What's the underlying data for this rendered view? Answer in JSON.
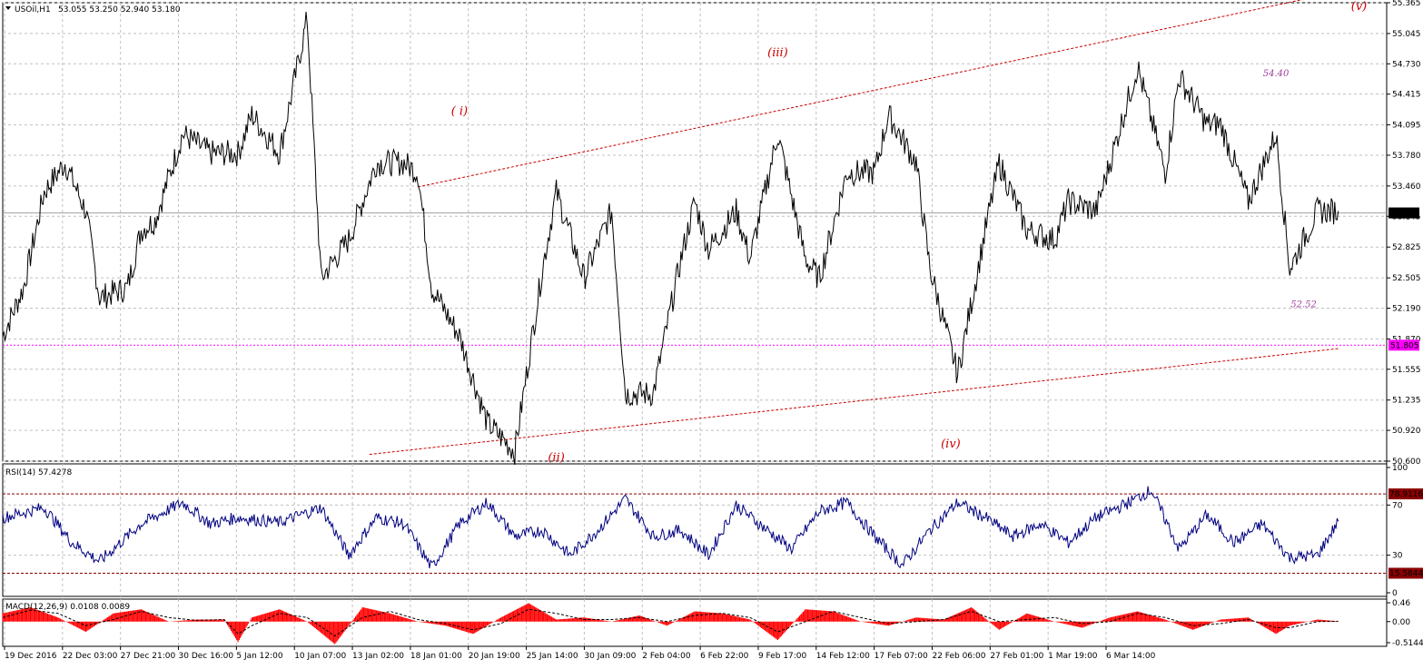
{
  "colors": {
    "background": "#ffffff",
    "grid": "#c0c0c0",
    "price": "#000000",
    "trendline": "#cc0000",
    "wave_label": "#cc0000",
    "level_label": "#a040a0",
    "magenta_level": "#ff00ff",
    "rsi_line": "#000080",
    "rsi_level": "#8b0000",
    "macd_hist": "#ff0000",
    "macd_signal": "#000000",
    "current_price_bg": "#000000"
  },
  "chart_data": [
    {
      "type": "line",
      "title": "USOil,H1",
      "ohlc_header": "53.055 53.250 52.940 53.180",
      "x_tick_labels": [
        "19 Dec 2016",
        "22 Dec 03:00",
        "27 Dec 21:00",
        "30 Dec 16:00",
        "5 Jan 12:00",
        "10 Jan 07:00",
        "13 Jan 02:00",
        "18 Jan 01:00",
        "20 Jan 19:00",
        "25 Jan 14:00",
        "30 Jan 09:00",
        "2 Feb 04:00",
        "6 Feb 22:00",
        "9 Feb 17:00",
        "14 Feb 12:00",
        "17 Feb 07:00",
        "22 Feb 06:00",
        "27 Feb 01:00",
        "1 Mar 19:00",
        "6 Mar 14:00"
      ],
      "y_tick_labels": [
        "55.365",
        "55.045",
        "54.730",
        "54.415",
        "54.095",
        "53.780",
        "53.460",
        "53.145",
        "52.825",
        "52.505",
        "52.190",
        "51.870",
        "51.555",
        "51.235",
        "50.920",
        "50.600"
      ],
      "ylim": [
        50.6,
        55.365
      ],
      "grid": true,
      "current_price": 53.18,
      "current_price_label": "53.180",
      "horizontal_level": 51.805,
      "horizontal_level_label": "51.805",
      "series": [
        {
          "x_index": [
            0,
            3,
            6,
            9,
            12,
            14,
            18,
            20,
            22,
            26,
            30,
            34,
            36,
            40,
            44,
            46,
            50,
            54,
            58,
            60,
            62,
            66,
            70,
            74,
            78,
            80,
            84,
            88,
            90,
            94,
            98,
            100,
            102,
            106,
            108,
            112,
            116,
            118,
            122,
            126,
            128,
            132,
            134,
            138,
            142,
            144,
            148,
            152,
            154,
            158,
            160,
            164,
            168,
            170,
            174,
            176,
            180,
            184,
            186,
            190,
            193
          ],
          "values": [
            51.9,
            52.4,
            53.4,
            53.7,
            53.2,
            52.3,
            52.4,
            53.0,
            53.1,
            54.0,
            53.8,
            53.8,
            54.2,
            53.8,
            55.2,
            52.5,
            52.9,
            53.7,
            53.7,
            53.6,
            52.4,
            51.9,
            51.0,
            50.7,
            52.6,
            53.4,
            52.5,
            53.2,
            51.3,
            51.3,
            52.7,
            53.3,
            52.8,
            53.2,
            52.7,
            54.0,
            52.7,
            52.5,
            53.6,
            53.6,
            54.2,
            53.7,
            52.6,
            51.5,
            53.0,
            53.7,
            53.0,
            52.9,
            53.3,
            53.2,
            53.7,
            54.7,
            53.6,
            54.6,
            54.1,
            54.1,
            53.3,
            54.0,
            52.6,
            53.2,
            53.2
          ]
        }
      ],
      "trendlines": [
        {
          "name": "upper",
          "x_index": [
            60,
            188
          ],
          "y": [
            53.45,
            55.4
          ]
        },
        {
          "name": "lower",
          "x_index": [
            53,
            193
          ],
          "y": [
            50.67,
            51.77
          ]
        }
      ],
      "annotations": [
        {
          "text": "( i)",
          "x_index": 66,
          "y": 54.2
        },
        {
          "text": "(ii)",
          "x_index": 80,
          "y": 50.6
        },
        {
          "text": "(iii)",
          "x_index": 112,
          "y": 54.81
        },
        {
          "text": "(iv)",
          "x_index": 137,
          "y": 50.74
        },
        {
          "text": "(v)",
          "x_index": 196,
          "y": 55.29
        },
        {
          "text": "54.40",
          "x_index": 184,
          "y": 54.6
        },
        {
          "text": "52.52",
          "x_index": 188,
          "y": 52.2
        }
      ]
    },
    {
      "type": "line",
      "title": "RSI(14) 57.4278",
      "y_tick_labels": [
        "100",
        "70",
        "30",
        "0"
      ],
      "ylim": [
        0,
        100
      ],
      "levels": [
        78.9116,
        15.5844
      ],
      "level_labels": [
        "78.9116",
        "15.5844"
      ],
      "series": [
        {
          "x_index": [
            0,
            6,
            10,
            14,
            20,
            26,
            30,
            34,
            40,
            46,
            50,
            54,
            58,
            62,
            66,
            70,
            74,
            78,
            82,
            86,
            90,
            94,
            98,
            102,
            106,
            110,
            114,
            118,
            122,
            126,
            130,
            134,
            138,
            142,
            146,
            150,
            154,
            158,
            162,
            166,
            170,
            174,
            178,
            182,
            186,
            190,
            193
          ],
          "values": [
            60,
            68,
            40,
            25,
            55,
            72,
            55,
            60,
            56,
            68,
            30,
            60,
            55,
            20,
            55,
            72,
            45,
            50,
            30,
            50,
            75,
            45,
            50,
            30,
            70,
            52,
            35,
            65,
            72,
            45,
            22,
            50,
            72,
            60,
            45,
            55,
            40,
            60,
            70,
            82,
            35,
            62,
            40,
            55,
            28,
            30,
            57
          ]
        }
      ]
    },
    {
      "type": "bar",
      "title": "MACD(12,26,9) 0.0108 0.0089",
      "y_tick_labels": [
        "0.46",
        "0.00",
        "-0.5144"
      ],
      "ylim": [
        -0.5144,
        0.46
      ],
      "series": [
        {
          "name": "histogram",
          "x_index": [
            0,
            4,
            8,
            12,
            16,
            20,
            24,
            28,
            32,
            34,
            36,
            40,
            44,
            48,
            52,
            56,
            60,
            64,
            68,
            72,
            76,
            80,
            84,
            88,
            92,
            96,
            100,
            104,
            108,
            112,
            116,
            120,
            124,
            128,
            132,
            136,
            140,
            144,
            148,
            152,
            156,
            160,
            164,
            168,
            172,
            176,
            180,
            184,
            186,
            190,
            193
          ],
          "values": [
            0.2,
            0.35,
            0.1,
            -0.25,
            0.2,
            0.3,
            0.0,
            0.05,
            0.05,
            -0.5,
            0.1,
            0.3,
            0.0,
            -0.55,
            0.35,
            0.2,
            0.0,
            -0.1,
            -0.3,
            0.1,
            0.45,
            0.05,
            0.1,
            0.0,
            0.15,
            -0.1,
            0.25,
            0.2,
            0.05,
            -0.45,
            0.3,
            0.25,
            0.0,
            -0.1,
            0.1,
            0.05,
            0.35,
            -0.2,
            0.2,
            0.0,
            -0.15,
            0.1,
            0.25,
            0.05,
            -0.2,
            0.05,
            0.1,
            -0.3,
            -0.1,
            0.05,
            0.01
          ]
        },
        {
          "name": "signal",
          "x_index": [
            0,
            4,
            8,
            12,
            16,
            20,
            24,
            28,
            32,
            34,
            36,
            40,
            44,
            48,
            52,
            56,
            60,
            64,
            68,
            72,
            76,
            80,
            84,
            88,
            92,
            96,
            100,
            104,
            108,
            112,
            116,
            120,
            124,
            128,
            132,
            136,
            140,
            144,
            148,
            152,
            156,
            160,
            164,
            168,
            172,
            176,
            180,
            184,
            186,
            190,
            193
          ],
          "values": [
            0.1,
            0.28,
            0.2,
            -0.1,
            0.05,
            0.25,
            0.1,
            0.03,
            0.05,
            -0.3,
            -0.1,
            0.2,
            0.1,
            -0.35,
            0.1,
            0.25,
            0.05,
            -0.05,
            -0.2,
            -0.05,
            0.3,
            0.2,
            0.05,
            0.05,
            0.1,
            0.0,
            0.15,
            0.2,
            0.1,
            -0.25,
            0.0,
            0.25,
            0.1,
            -0.05,
            0.0,
            0.05,
            0.25,
            0.0,
            0.05,
            0.1,
            -0.05,
            0.0,
            0.2,
            0.1,
            -0.1,
            -0.05,
            0.05,
            -0.15,
            -0.15,
            0.0,
            0.0089
          ]
        }
      ]
    }
  ]
}
